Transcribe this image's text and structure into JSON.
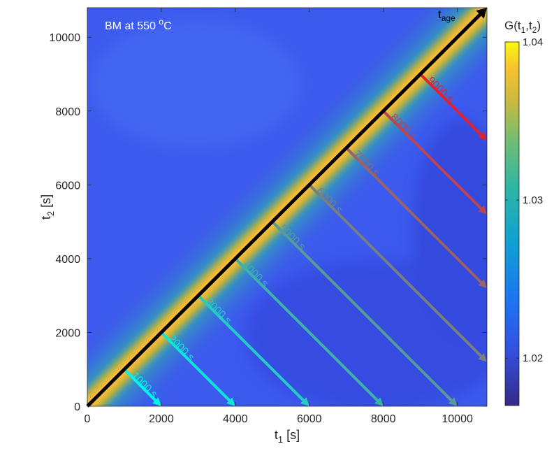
{
  "chart_data": {
    "type": "heatmap",
    "title": "",
    "annotation": {
      "text": "BM at 550 ",
      "sup": "o",
      "tail": "C"
    },
    "xlabel": {
      "base": "t",
      "sub": "1",
      "tail": " [s]"
    },
    "ylabel": {
      "base": "t",
      "sub": "2",
      "tail": " [s]"
    },
    "xlim": [
      0,
      10800
    ],
    "ylim": [
      0,
      10800
    ],
    "xticks": [
      0,
      2000,
      4000,
      6000,
      8000,
      10000
    ],
    "yticks": [
      0,
      2000,
      4000,
      6000,
      8000,
      10000
    ],
    "xtick_labels": [
      "0",
      "2000",
      "4000",
      "6000",
      "8000",
      "10000"
    ],
    "ytick_labels": [
      "0",
      "2000",
      "4000",
      "6000",
      "8000",
      "10000"
    ],
    "colorbar": {
      "title": "G(t",
      "title_sub1": "1",
      "title_mid": ",t",
      "title_sub2": "2",
      "title_end": ")",
      "range": [
        1.017,
        1.04
      ],
      "ticks": [
        1.02,
        1.03,
        1.04
      ],
      "tick_labels": [
        "1.02",
        "1.03",
        "1.04"
      ]
    },
    "diagonal": {
      "label_base": "t",
      "label_sub": "age",
      "from": [
        0,
        0
      ],
      "to": [
        10800,
        10800
      ],
      "color": "#000000"
    },
    "arrows": [
      {
        "label": "1000 s",
        "from": [
          1000,
          1000
        ],
        "to": [
          2000,
          0
        ],
        "color": "#00f5e8"
      },
      {
        "label": "2000 s",
        "from": [
          2000,
          2000
        ],
        "to": [
          4000,
          0
        ],
        "color": "#0ee6d9"
      },
      {
        "label": "3000 s",
        "from": [
          3000,
          3000
        ],
        "to": [
          6000,
          0
        ],
        "color": "#22cdc4"
      },
      {
        "label": "4000 s",
        "from": [
          4000,
          4000
        ],
        "to": [
          8000,
          0
        ],
        "color": "#3bb2ad"
      },
      {
        "label": "5000 s",
        "from": [
          5000,
          5000
        ],
        "to": [
          10000,
          0
        ],
        "color": "#589a98"
      },
      {
        "label": "6000 s",
        "from": [
          6000,
          6000
        ],
        "to": [
          10800,
          1200
        ],
        "color": "#777f82"
      },
      {
        "label": "7000 s",
        "from": [
          7000,
          7000
        ],
        "to": [
          10800,
          3200
        ],
        "color": "#98646c"
      },
      {
        "label": "8000 s",
        "from": [
          8000,
          8000
        ],
        "to": [
          10800,
          5200
        ],
        "color": "#bb4553"
      },
      {
        "label": "9000 s",
        "from": [
          9000,
          9000
        ],
        "to": [
          10800,
          7200
        ],
        "color": "#e0222f"
      }
    ]
  }
}
